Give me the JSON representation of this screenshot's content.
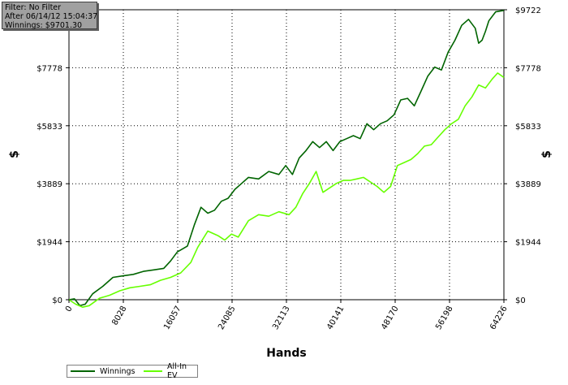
{
  "info": {
    "filter": "Filter: No Filter",
    "after": "After 06/14/12 15:04:37",
    "winnings": "Winnings: $9701.30"
  },
  "chart_data": {
    "type": "line",
    "xlabel": "Hands",
    "ylabel": "$",
    "xlim": [
      0,
      64226
    ],
    "ylim": [
      0,
      9722
    ],
    "x_ticks": [
      0,
      8028,
      16057,
      24085,
      32113,
      40141,
      48170,
      56198,
      64226
    ],
    "y_ticks": [
      0,
      1944,
      3889,
      5833,
      7778,
      9722
    ],
    "y_tick_labels": [
      "$0",
      "$1944",
      "$3889",
      "$5833",
      "$7778",
      "$9722"
    ],
    "grid": true,
    "legend": "bottom-left",
    "series": [
      {
        "name": "Winnings",
        "color": "#006400",
        "x": [
          0,
          800,
          1600,
          2400,
          3500,
          5000,
          6500,
          8000,
          9500,
          11000,
          12500,
          14000,
          15000,
          16000,
          17500,
          18500,
          19500,
          20500,
          21500,
          22500,
          23500,
          24500,
          25500,
          26500,
          28000,
          29500,
          31000,
          32000,
          33000,
          34000,
          35000,
          36000,
          37000,
          38000,
          39000,
          40000,
          41000,
          42000,
          43000,
          44000,
          45000,
          46000,
          47000,
          48000,
          49000,
          50000,
          51000,
          52000,
          53000,
          54000,
          55000,
          56000,
          57000,
          58000,
          59000,
          60000,
          60500,
          61000,
          61500,
          62000,
          63000,
          64226
        ],
        "y": [
          0,
          30,
          -200,
          -150,
          200,
          450,
          750,
          800,
          850,
          950,
          1000,
          1050,
          1300,
          1600,
          1800,
          2500,
          3100,
          2900,
          3000,
          3300,
          3400,
          3700,
          3900,
          4100,
          4050,
          4300,
          4200,
          4500,
          4200,
          4750,
          5000,
          5300,
          5100,
          5300,
          5000,
          5300,
          5400,
          5500,
          5400,
          5900,
          5700,
          5900,
          6000,
          6200,
          6700,
          6750,
          6500,
          7000,
          7500,
          7800,
          7700,
          8300,
          8700,
          9200,
          9400,
          9100,
          8600,
          8700,
          9000,
          9350,
          9650,
          9701.3
        ]
      },
      {
        "name": "All-In EV",
        "color": "#66ff00",
        "x": [
          0,
          1000,
          2000,
          3000,
          4500,
          6000,
          7500,
          9000,
          10500,
          12000,
          13500,
          15000,
          16500,
          18000,
          19000,
          20500,
          22000,
          23000,
          24000,
          25000,
          26500,
          28000,
          29500,
          31000,
          32500,
          33500,
          34500,
          35500,
          36500,
          37500,
          38500,
          39500,
          40500,
          41500,
          42500,
          43500,
          44500,
          45500,
          46500,
          47500,
          48500,
          49500,
          50500,
          51500,
          52500,
          53500,
          54500,
          55500,
          56500,
          57500,
          58500,
          59500,
          60500,
          61500,
          62500,
          63300,
          64226
        ],
        "y": [
          0,
          -150,
          -250,
          -200,
          50,
          150,
          300,
          400,
          450,
          500,
          650,
          750,
          900,
          1250,
          1750,
          2300,
          2150,
          2000,
          2200,
          2100,
          2650,
          2850,
          2800,
          2950,
          2850,
          3100,
          3550,
          3900,
          4300,
          3600,
          3750,
          3900,
          4000,
          4000,
          4050,
          4100,
          3950,
          3800,
          3600,
          3800,
          4500,
          4600,
          4700,
          4900,
          5150,
          5200,
          5450,
          5700,
          5900,
          6050,
          6500,
          6800,
          7200,
          7100,
          7400,
          7600,
          7450
        ]
      }
    ]
  }
}
